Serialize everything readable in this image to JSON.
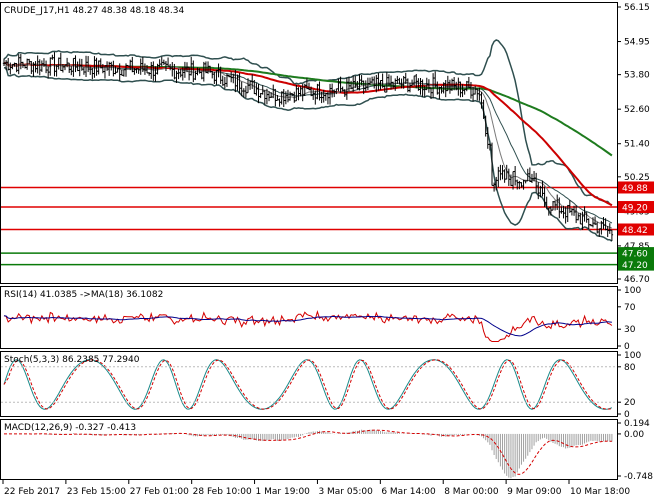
{
  "header": {
    "symbol_line": "CRUDE_J17,H1  48.27 48.38 48.18 48.34"
  },
  "colors": {
    "background": "#ffffff",
    "grid_frame": "#000000",
    "price_bars": "#000000",
    "bollinger": "#2f4f4f",
    "ma_fast": "#7a7a7a",
    "ma_mid": "#cc0000",
    "ma_slow": "#1e7b1e",
    "level_red": "#e00000",
    "level_green": "#0a7a0a",
    "rsi_line": "#d40000",
    "rsi_ma": "#00008b",
    "stoch_main": "#1a8a8a",
    "stoch_signal": "#d40000",
    "macd_hist": "#a0a0a0",
    "macd_signal": "#d40000"
  },
  "price_axis": {
    "ticks": [
      "56.15",
      "54.95",
      "53.80",
      "52.60",
      "51.40",
      "50.25",
      "49.05",
      "47.85",
      "46.70"
    ],
    "range": [
      46.7,
      56.15
    ]
  },
  "levels": [
    {
      "name": "r3",
      "value": 49.88,
      "label": "49.88",
      "color": "red"
    },
    {
      "name": "r2",
      "value": 49.2,
      "label": "49.20",
      "color": "red"
    },
    {
      "name": "r1",
      "value": 48.42,
      "label": "48.42",
      "color": "red"
    },
    {
      "name": "s1",
      "value": 47.6,
      "label": "47.60",
      "color": "green"
    },
    {
      "name": "s2",
      "value": 47.2,
      "label": "47.20",
      "color": "green"
    }
  ],
  "time_axis": {
    "labels": [
      "22 Feb 2017",
      "23 Feb 15:00",
      "27 Feb 01:00",
      "28 Feb 10:00",
      "1 Mar 19:00",
      "3 Mar 05:00",
      "6 Mar 14:00",
      "8 Mar 00:00",
      "9 Mar 09:00",
      "10 Mar 18:00"
    ]
  },
  "rsi": {
    "title": "RSI(14) 41.0385  ->MA(18) 36.1082",
    "ticks": [
      "100",
      "70",
      "30",
      "0"
    ],
    "range": [
      0,
      100
    ]
  },
  "stoch": {
    "title": "Stoch(5,3,3) 86.2385 77.2940",
    "ticks": [
      "100",
      "80",
      "20",
      "0"
    ],
    "range": [
      0,
      100
    ]
  },
  "macd": {
    "title": "MACD(12,26,9) -0.327 -0.413",
    "ticks": [
      "0.194",
      "0.00",
      "-0.748"
    ],
    "range": [
      -0.748,
      0.194
    ]
  },
  "chart_data": {
    "type": "line",
    "title": "CRUDE_J17,H1",
    "x": [
      "22 Feb 2017",
      "23 Feb 15:00",
      "27 Feb 01:00",
      "28 Feb 10:00",
      "1 Mar 19:00",
      "3 Mar 05:00",
      "6 Mar 14:00",
      "8 Mar 00:00",
      "9 Mar 09:00",
      "10 Mar 18:00"
    ],
    "series": [
      {
        "name": "close",
        "values": [
          54.2,
          54.1,
          54.0,
          53.9,
          53.1,
          53.3,
          53.5,
          53.3,
          49.4,
          48.3
        ]
      }
    ],
    "ylim": [
      46.7,
      56.15
    ],
    "ohlc_last": {
      "open": 48.27,
      "high": 48.38,
      "low": 48.18,
      "close": 48.34
    }
  }
}
